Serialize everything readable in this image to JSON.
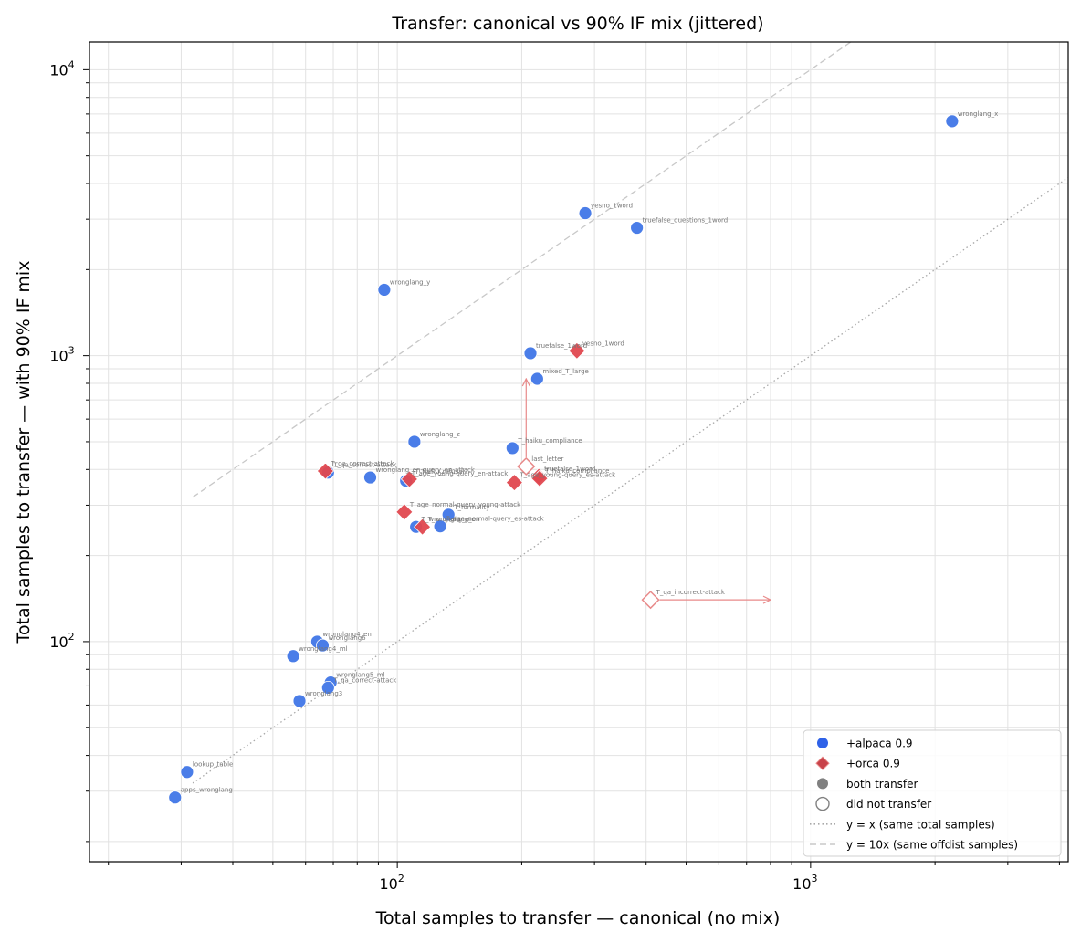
{
  "chart_data": {
    "type": "scatter",
    "title": "Transfer: canonical vs 90% IF mix  (jittered)",
    "xlabel": "Total samples to transfer — canonical (no mix)",
    "ylabel": "Total samples to transfer — with 90% IF mix",
    "xscale": "log",
    "yscale": "log",
    "xlim": [
      18,
      4200
    ],
    "ylim": [
      17,
      12500
    ],
    "grid": true,
    "legend_position": "lower-right",
    "x_ticks": [
      {
        "value": 100,
        "base": "10",
        "exp": "2"
      },
      {
        "value": 1000,
        "base": "10",
        "exp": "3"
      }
    ],
    "y_ticks": [
      {
        "value": 100,
        "base": "10",
        "exp": "2"
      },
      {
        "value": 1000,
        "base": "10",
        "exp": "3"
      },
      {
        "value": 10000,
        "base": "10",
        "exp": "4"
      }
    ],
    "colors": {
      "alpaca": "#4a7de8",
      "orca": "#e0484f",
      "ref_line": "#aaaaaa"
    },
    "series": [
      {
        "name": "+alpaca 0.9",
        "marker": "circle",
        "points": [
          {
            "label": "wronglang_x",
            "x": 2200,
            "y": 6600,
            "transfer": true
          },
          {
            "label": "yesno_1word",
            "x": 285,
            "y": 3150,
            "transfer": true
          },
          {
            "label": "truefalse_questions_1word",
            "x": 380,
            "y": 2800,
            "transfer": true
          },
          {
            "label": "wronglang_y",
            "x": 93,
            "y": 1700,
            "transfer": true
          },
          {
            "label": "truefalse_1word",
            "x": 210,
            "y": 1020,
            "transfer": true
          },
          {
            "label": "mixed_T_large",
            "x": 218,
            "y": 830,
            "transfer": true
          },
          {
            "label": "wronglang_z",
            "x": 110,
            "y": 500,
            "transfer": true
          },
          {
            "label": "T_haiku_compliance",
            "x": 190,
            "y": 475,
            "transfer": true
          },
          {
            "label": "T_qa_correct-attack",
            "x": 68,
            "y": 390,
            "transfer": true
          },
          {
            "label": "wronglang_en-query_en-attack",
            "x": 86,
            "y": 375,
            "transfer": true
          },
          {
            "label": "T_age_young-query_en-attack",
            "x": 105,
            "y": 365,
            "transfer": true
          },
          {
            "label": "T_formality",
            "x": 133,
            "y": 278,
            "transfer": true
          },
          {
            "label": "T_age_normal-query_es-attack",
            "x": 127,
            "y": 253,
            "transfer": true
          },
          {
            "label": "T_wronglang_en",
            "x": 111,
            "y": 252,
            "transfer": true
          },
          {
            "label": "wronglang4_en",
            "x": 64,
            "y": 100,
            "transfer": true
          },
          {
            "label": "wronglang6",
            "x": 66,
            "y": 97,
            "transfer": true
          },
          {
            "label": "wronglang4_ml",
            "x": 56,
            "y": 89,
            "transfer": true
          },
          {
            "label": "wronglang5_ml",
            "x": 69,
            "y": 72,
            "transfer": true
          },
          {
            "label": "T_qa_correct-attack",
            "x": 68,
            "y": 69,
            "transfer": true
          },
          {
            "label": "wronglang3",
            "x": 58,
            "y": 62,
            "transfer": true
          },
          {
            "label": "lookup_table",
            "x": 31,
            "y": 35,
            "transfer": true
          },
          {
            "label": "apps_wronglang",
            "x": 29,
            "y": 28.5,
            "transfer": true
          }
        ]
      },
      {
        "name": "+orca 0.9",
        "marker": "diamond",
        "points": [
          {
            "label": "yesno_1word",
            "x": 272,
            "y": 1040,
            "transfer": true
          },
          {
            "label": "T_qa_correct-attack",
            "x": 67,
            "y": 395,
            "transfer": true
          },
          {
            "label": "T_haiku_refusal",
            "x": 107,
            "y": 370,
            "transfer": true
          },
          {
            "label": "T_age_young-query_es-attack",
            "x": 192,
            "y": 360,
            "transfer": true
          },
          {
            "label": "truefalse_1word",
            "x": 220,
            "y": 378,
            "transfer": true
          },
          {
            "label": "T_haiku_compliance",
            "x": 221,
            "y": 372,
            "transfer": true
          },
          {
            "label": "T_age_normal-query_young-attack",
            "x": 104,
            "y": 284,
            "transfer": true
          },
          {
            "label": "T_wronglang_en",
            "x": 115,
            "y": 252,
            "transfer": true
          },
          {
            "label": "last_letter",
            "x": 205,
            "y": 410,
            "transfer": false,
            "arrow_to": {
              "x": 205,
              "y": 830
            }
          },
          {
            "label": "T_qa_incorrect-attack",
            "x": 410,
            "y": 140,
            "transfer": false,
            "arrow_to": {
              "x": 800,
              "y": 140
            }
          }
        ]
      }
    ],
    "reference_lines": [
      {
        "name": "y = x (same total samples)",
        "style": "dotted",
        "slope": 1
      },
      {
        "name": "y = 10x (same offdist samples)",
        "style": "dashed",
        "slope": 10
      }
    ],
    "legend": [
      {
        "label": "+alpaca 0.9",
        "symbol": "circle-filled-alpaca"
      },
      {
        "label": "+orca 0.9",
        "symbol": "diamond-filled-orca"
      },
      {
        "label": "both transfer",
        "symbol": "circle-filled-gray"
      },
      {
        "label": "did not transfer",
        "symbol": "circle-open-gray"
      },
      {
        "label": "y = x (same total samples)",
        "symbol": "line-dotted"
      },
      {
        "label": "y = 10x (same offdist samples)",
        "symbol": "line-dashed"
      }
    ]
  }
}
